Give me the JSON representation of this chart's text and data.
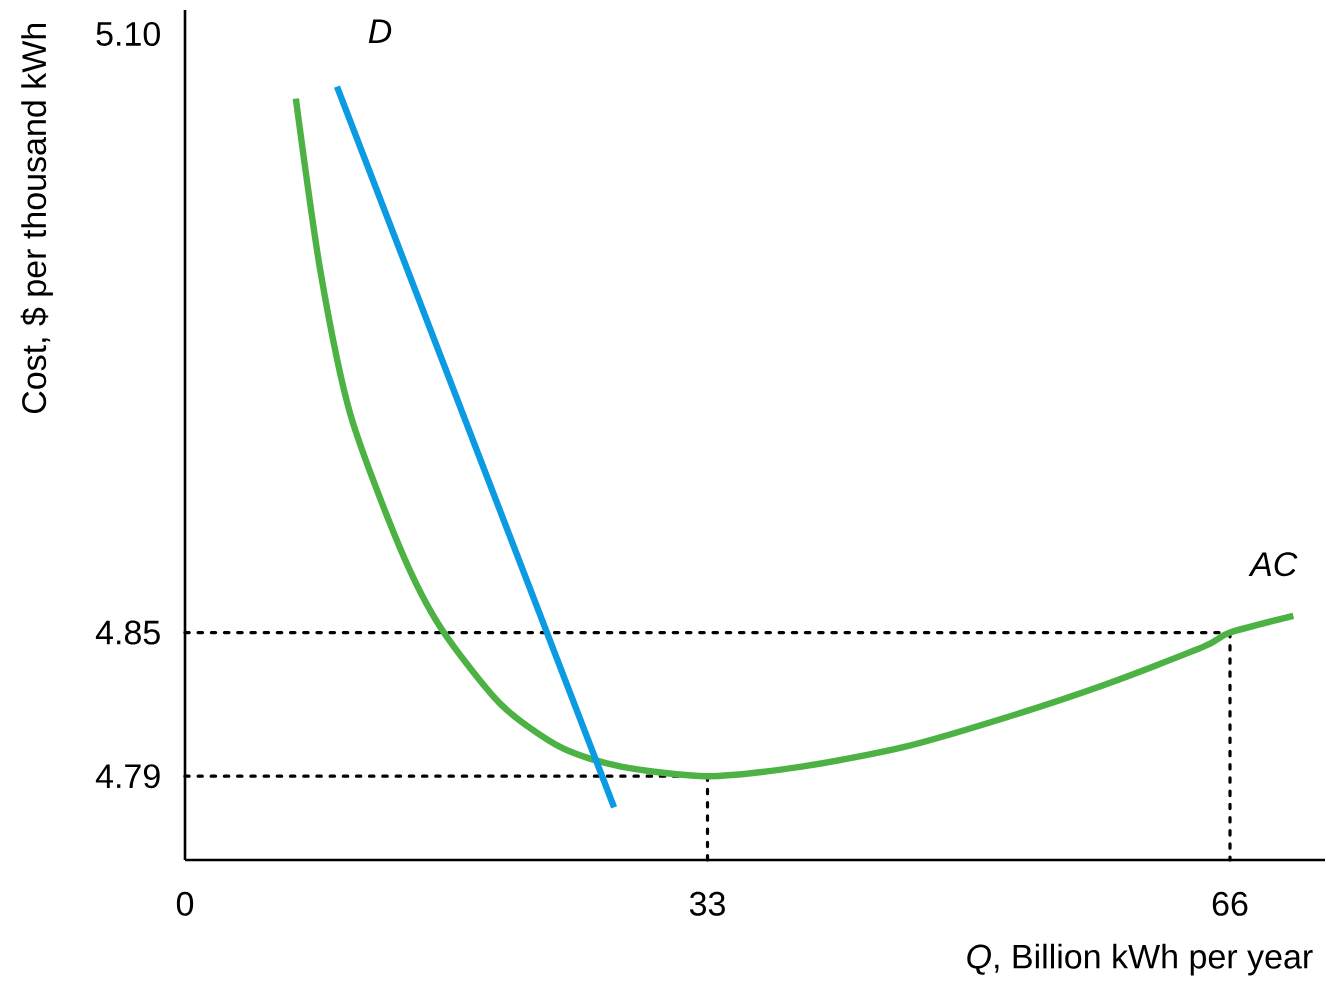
{
  "chart_data": {
    "type": "line",
    "xlabel": "*Q*, Billion kWh per year",
    "ylabel": "Cost, $ per thousand kWh",
    "xlim": [
      0,
      72
    ],
    "ylim": [
      4.755,
      5.11
    ],
    "xticks": [
      0,
      33,
      66
    ],
    "yticks": [
      4.79,
      4.85,
      {
        "value": 5.1,
        "label": "5.10"
      }
    ],
    "series": [
      {
        "color": "#000000",
        "line_style": "dotted",
        "x": [
          0,
          66
        ],
        "values": [
          4.85,
          4.85
        ]
      },
      {
        "color": "#000000",
        "line_style": "dotted",
        "x": [
          0,
          33
        ],
        "values": [
          4.79,
          4.79
        ]
      },
      {
        "color": "#000000",
        "line_style": "dotted",
        "x": [
          33,
          33
        ],
        "values": [
          4.79,
          4.755
        ]
      },
      {
        "color": "#000000",
        "line_style": "dotted",
        "x": [
          66,
          66
        ],
        "values": [
          4.85,
          4.755
        ]
      },
      {
        "color": "#4cb244",
        "line_style": "solid",
        "x": [
          7.0,
          8.55,
          10.45,
          13.6,
          16.15,
          19.95,
          23.75,
          27.55,
          33,
          38.95,
          45.3,
          51.6,
          58.0,
          64.3,
          66,
          70
        ],
        "values": [
          5.073,
          5.001,
          4.941,
          4.885,
          4.852,
          4.82,
          4.802,
          4.794,
          4.79,
          4.794,
          4.802,
          4.814,
          4.828,
          4.844,
          4.85,
          4.857
        ]
      },
      {
        "color": "#0a9be3",
        "line_style": "solid",
        "x": [
          9.6,
          27.1
        ],
        "values": [
          5.078,
          4.777
        ]
      }
    ],
    "annotations": [
      "D",
      "AC"
    ]
  }
}
